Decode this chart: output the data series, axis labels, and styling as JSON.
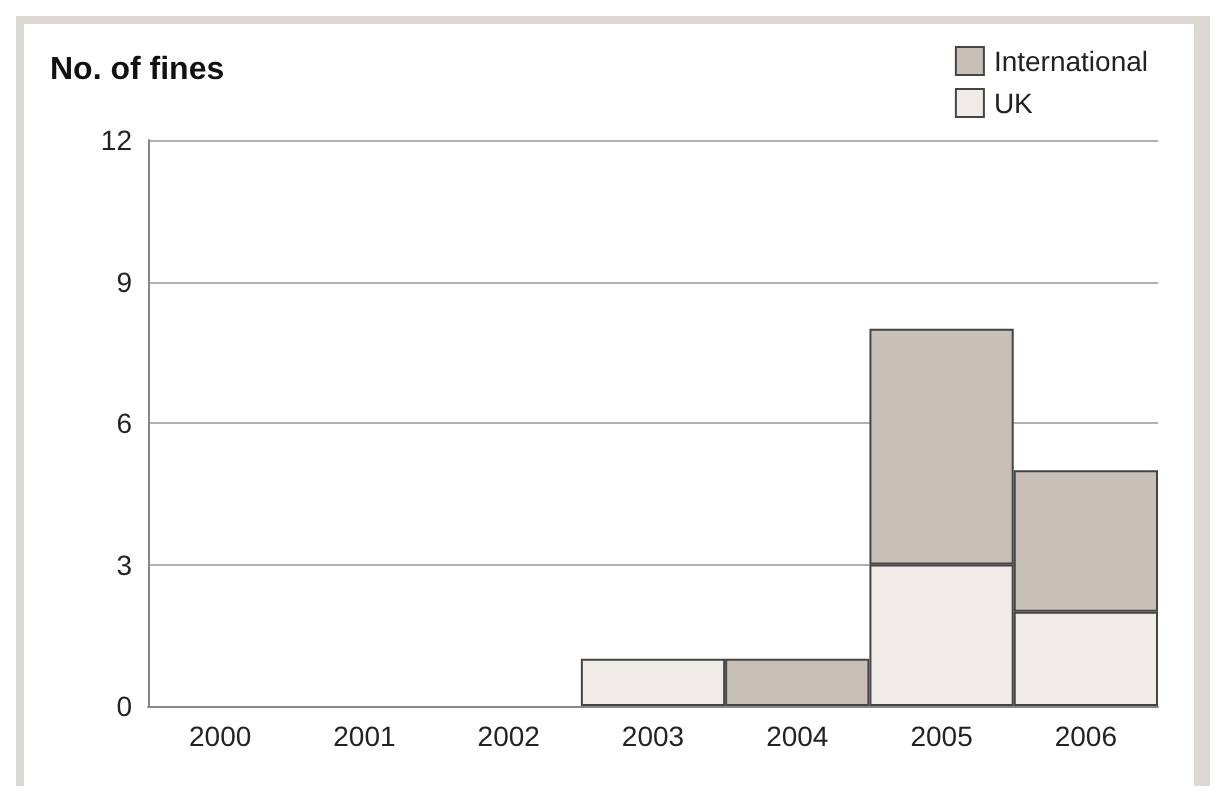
{
  "chart_data": {
    "type": "bar",
    "title": "No. of fines",
    "categories": [
      "2000",
      "2001",
      "2002",
      "2003",
      "2004",
      "2005",
      "2006"
    ],
    "series": [
      {
        "name": "UK",
        "color": "#efebe7",
        "values": [
          0,
          0,
          0,
          1,
          0,
          3,
          2
        ]
      },
      {
        "name": "International",
        "color": "#c8c0b7",
        "values": [
          0,
          0,
          0,
          0,
          1,
          5,
          3
        ]
      }
    ],
    "stacked": true,
    "ylim": [
      0,
      12
    ],
    "yticks": [
      0,
      3,
      6,
      9,
      12
    ],
    "grid": "y",
    "legend": "top right"
  }
}
